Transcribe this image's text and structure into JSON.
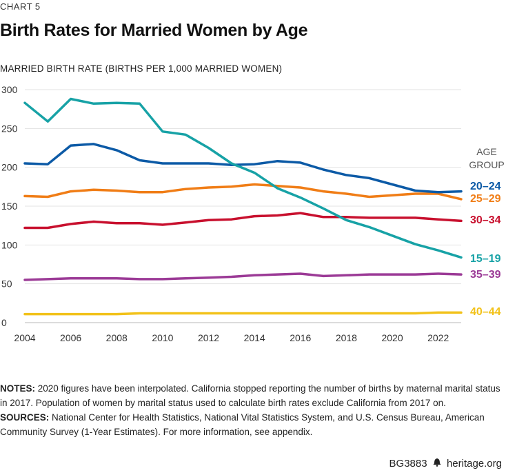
{
  "header": {
    "kicker": "CHART 5",
    "title": "Birth Rates for Married Women by Age"
  },
  "chart_data": {
    "type": "line",
    "title": "Birth Rates for Married Women by Age",
    "ylabel": "MARRIED BIRTH RATE (BIRTHS PER 1,000 MARRIED WOMEN)",
    "xlabel": "",
    "ylim": [
      0,
      300
    ],
    "xlim": [
      2004,
      2023
    ],
    "y_ticks": [
      "0",
      "50",
      "100",
      "150",
      "200",
      "250",
      "300"
    ],
    "x_ticks": [
      "2004",
      "2006",
      "2008",
      "2010",
      "2012",
      "2014",
      "2016",
      "2018",
      "2020",
      "2022"
    ],
    "grid": true,
    "legend_title": [
      "AGE",
      "GROUP"
    ],
    "legend_placement": "right, direct labels",
    "x": [
      2004,
      2005,
      2006,
      2007,
      2008,
      2009,
      2010,
      2011,
      2012,
      2013,
      2014,
      2015,
      2016,
      2017,
      2018,
      2019,
      2020,
      2021,
      2022,
      2023
    ],
    "series": [
      {
        "name": "15–19",
        "color": "#17a2a6",
        "values": [
          283,
          259,
          288,
          282,
          283,
          282,
          246,
          242,
          225,
          205,
          193,
          173,
          161,
          147,
          132,
          123,
          112,
          101,
          93,
          84
        ]
      },
      {
        "name": "20–24",
        "color": "#0c5aa6",
        "values": [
          205,
          204,
          228,
          230,
          222,
          209,
          205,
          205,
          205,
          203,
          204,
          208,
          206,
          197,
          190,
          186,
          178,
          170,
          168,
          169
        ]
      },
      {
        "name": "25–29",
        "color": "#f07d16",
        "values": [
          163,
          162,
          169,
          171,
          170,
          168,
          168,
          172,
          174,
          175,
          178,
          176,
          174,
          169,
          166,
          162,
          164,
          166,
          166,
          159
        ]
      },
      {
        "name": "30–34",
        "color": "#c8102e",
        "values": [
          122,
          122,
          127,
          130,
          128,
          128,
          126,
          129,
          132,
          133,
          137,
          138,
          141,
          136,
          136,
          135,
          135,
          135,
          133,
          131
        ]
      },
      {
        "name": "35–39",
        "color": "#9b3a96",
        "values": [
          55,
          56,
          57,
          57,
          57,
          56,
          56,
          57,
          58,
          59,
          61,
          62,
          63,
          60,
          61,
          62,
          62,
          62,
          63,
          62
        ]
      },
      {
        "name": "40–44",
        "color": "#f2c21a",
        "values": [
          11,
          11,
          11,
          11,
          11,
          12,
          12,
          12,
          12,
          12,
          12,
          12,
          12,
          12,
          12,
          12,
          12,
          12,
          13,
          13
        ]
      }
    ]
  },
  "notes": {
    "notes_label": "NOTES:",
    "notes_text": " 2020 figures have been interpolated. California stopped reporting the number of births by maternal marital status in 2017. Population of women by marital status used to calculate birth rates exclude California from 2017 on.",
    "sources_label": "SOURCES:",
    "sources_text": " National Center for Health Statistics, National Vital Statistics System, and U.S. Census Bureau, American Community Survey (1-Year Estimates). For more information, see appendix."
  },
  "footer": {
    "code": "BG3883",
    "site": "heritage.org",
    "logo_icon": "liberty-bell-icon"
  }
}
